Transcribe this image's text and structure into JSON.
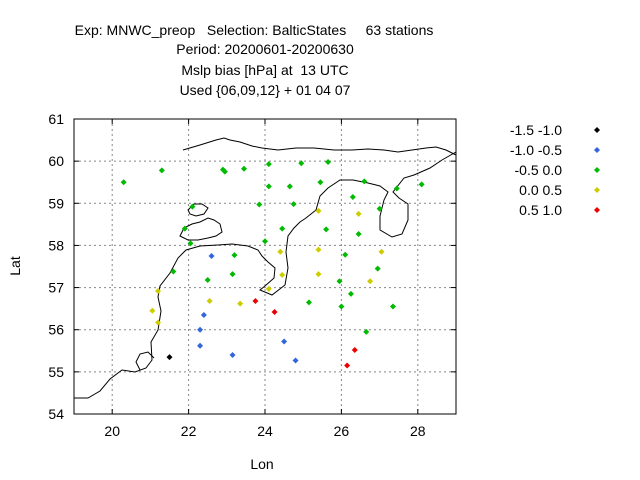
{
  "header": {
    "line1": "Exp: MNWC_preop   Selection: BalticStates     63 stations",
    "line2": "Period: 20200601-20200630",
    "line3": "Mslp bias [hPa] at  13 UTC",
    "line4": "Used {06,09,12} + 01 04 07"
  },
  "chart_data": {
    "type": "scatter",
    "xlabel": "Lon",
    "ylabel": "Lat",
    "xlim": [
      19,
      29
    ],
    "ylim": [
      54,
      61
    ],
    "xticks": [
      20,
      22,
      24,
      26,
      28
    ],
    "yticks": [
      54,
      55,
      56,
      57,
      58,
      59,
      60,
      61
    ],
    "grid": true,
    "legend": [
      {
        "label": "-1.5 -1.0",
        "color": "#000000"
      },
      {
        "label": "-1.0 -0.5",
        "color": "#3366dd"
      },
      {
        "label": "-0.5 0.0",
        "color": "#00bb00"
      },
      {
        "label": "0.0 0.5",
        "color": "#cccc00"
      },
      {
        "label": "0.5 1.0",
        "color": "#ee0000"
      }
    ],
    "series": [
      {
        "name": "-1.5 -1.0",
        "color": "#000000",
        "points": [
          [
            21.5,
            55.35
          ]
        ]
      },
      {
        "name": "-1.0 -0.5",
        "color": "#3366dd",
        "points": [
          [
            22.6,
            57.75
          ],
          [
            22.4,
            56.35
          ],
          [
            22.3,
            56.0
          ],
          [
            22.3,
            55.62
          ],
          [
            23.15,
            55.4
          ],
          [
            24.5,
            55.72
          ],
          [
            24.8,
            55.27
          ]
        ]
      },
      {
        "name": "-0.5 0.0",
        "color": "#00bb00",
        "points": [
          [
            20.3,
            59.5
          ],
          [
            21.3,
            59.78
          ],
          [
            22.9,
            59.8
          ],
          [
            22.95,
            59.75
          ],
          [
            23.45,
            59.82
          ],
          [
            24.1,
            59.93
          ],
          [
            24.95,
            59.95
          ],
          [
            25.65,
            59.98
          ],
          [
            24.1,
            59.4
          ],
          [
            24.65,
            59.4
          ],
          [
            25.45,
            59.5
          ],
          [
            26.6,
            59.52
          ],
          [
            27.45,
            59.35
          ],
          [
            28.1,
            59.45
          ],
          [
            22.1,
            58.92
          ],
          [
            23.85,
            58.97
          ],
          [
            24.75,
            58.98
          ],
          [
            26.3,
            59.15
          ],
          [
            27.0,
            58.87
          ],
          [
            21.9,
            58.4
          ],
          [
            24.45,
            58.4
          ],
          [
            25.6,
            58.38
          ],
          [
            26.45,
            58.27
          ],
          [
            22.05,
            58.05
          ],
          [
            24.0,
            58.1
          ],
          [
            23.2,
            57.77
          ],
          [
            21.6,
            57.38
          ],
          [
            23.15,
            57.32
          ],
          [
            26.1,
            57.78
          ],
          [
            26.95,
            57.45
          ],
          [
            22.5,
            57.18
          ],
          [
            25.95,
            57.15
          ],
          [
            26.25,
            56.85
          ],
          [
            25.15,
            56.65
          ],
          [
            26.0,
            56.55
          ],
          [
            27.35,
            56.55
          ],
          [
            26.65,
            55.95
          ]
        ]
      },
      {
        "name": "0.0 0.5",
        "color": "#cccc00",
        "points": [
          [
            25.4,
            58.82
          ],
          [
            26.45,
            58.75
          ],
          [
            25.4,
            57.9
          ],
          [
            24.4,
            57.85
          ],
          [
            27.05,
            57.85
          ],
          [
            24.45,
            57.3
          ],
          [
            25.4,
            57.32
          ],
          [
            26.75,
            57.15
          ],
          [
            21.2,
            56.92
          ],
          [
            24.1,
            56.97
          ],
          [
            22.55,
            56.68
          ],
          [
            23.35,
            56.62
          ],
          [
            21.05,
            56.45
          ],
          [
            21.2,
            56.17
          ]
        ]
      },
      {
        "name": "0.5 1.0",
        "color": "#ee0000",
        "points": [
          [
            23.75,
            56.68
          ],
          [
            24.25,
            56.42
          ],
          [
            26.35,
            55.52
          ],
          [
            26.15,
            55.15
          ]
        ]
      }
    ]
  }
}
